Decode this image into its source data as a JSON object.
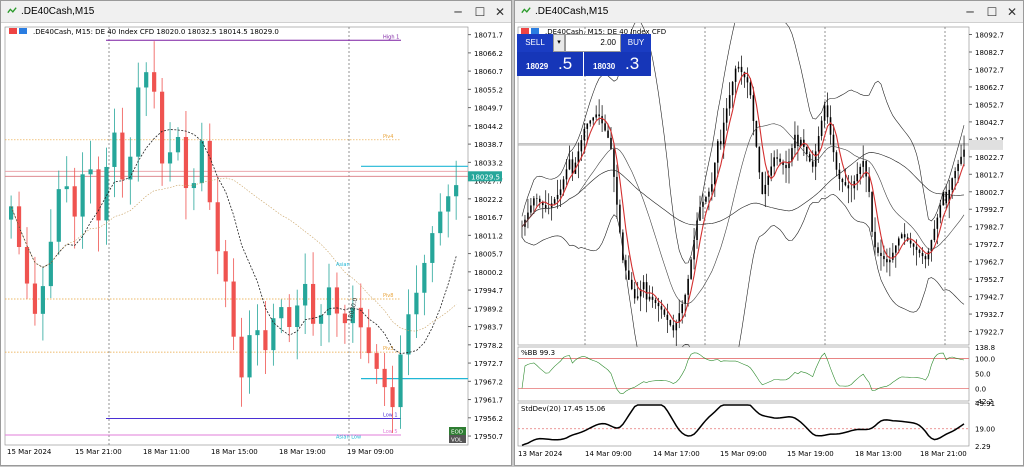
{
  "left": {
    "title": ".DE40Cash,M15",
    "info": ".DE40Cash, M15:  DE 40 Index CFD  18020.0 18032.5 18014.5 18029.0",
    "price_badge": "18029.5",
    "prices": [
      "18071.7",
      "18066.2",
      "18060.7",
      "18055.2",
      "18049.7",
      "18044.2",
      "18038.7",
      "18033.2",
      "18027.7",
      "18022.2",
      "18016.7",
      "18011.2",
      "18005.7",
      "18000.2",
      "17994.7",
      "17989.2",
      "17983.7",
      "17978.2",
      "17972.7",
      "17967.2",
      "17961.7",
      "17956.2",
      "17950.7"
    ],
    "dates": [
      "15 Mar 2024",
      "15 Mar 21:00",
      "18 Mar 11:00",
      "18 Mar 15:00",
      "18 Mar 19:00",
      "19 Mar 09:00"
    ],
    "levels": {
      "high1": "High 1",
      "piv4": "Piv4",
      "piv8": "Piv8",
      "piv3": "Piv3",
      "low1": "Low 1",
      "low5": "Low 5"
    },
    "sidebar_tags": [
      "Asian",
      "Asian Low"
    ],
    "rotated_label": "18020.0",
    "tag_vol": "VOL",
    "tag_green": "EOD"
  },
  "right": {
    "title": ".DE40Cash,M15",
    "info": ".DE40Cash, M15:  DE 40 Index CFD",
    "trade": {
      "sell": "SELL",
      "buy": "BUY",
      "volume": "2.00",
      "bid_small": "18029",
      "bid_big": ".5",
      "ask_small": "18030",
      "ask_big": ".3"
    },
    "prices": [
      "18092.7",
      "18082.7",
      "18072.7",
      "18062.7",
      "18052.7",
      "18042.7",
      "18032.7",
      "18022.7",
      "18012.7",
      "18002.7",
      "17992.7",
      "17982.7",
      "17972.7",
      "17962.7",
      "17952.7",
      "17942.7",
      "17932.7",
      "17922.7"
    ],
    "bb_label": "%BB 99.3",
    "bb_scale": [
      "138.8",
      "100.0",
      "50.0",
      "0.0",
      "-42.2"
    ],
    "sd_label": "StdDev(20) 17.45 15.06",
    "sd_scale": [
      "43.91",
      "19.00",
      "2.29"
    ],
    "dates": [
      "13 Mar 2024",
      "14 Mar 09:00",
      "14 Mar 17:00",
      "15 Mar 09:00",
      "15 Mar 19:00",
      "18 Mar 13:00",
      "18 Mar 21:00"
    ]
  },
  "colors": {
    "bull": "#26a69a",
    "bear": "#ef5350",
    "accent": "#1636b8"
  }
}
